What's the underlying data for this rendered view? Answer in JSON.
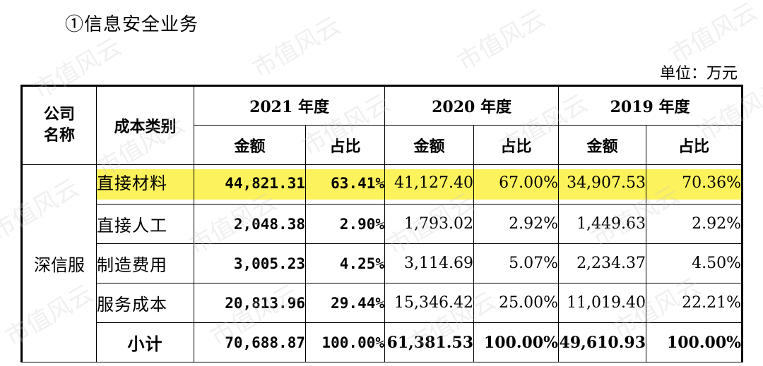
{
  "section_title": "①信息安全业务",
  "unit": "单位：万元",
  "watermark_text": "市值风云",
  "header": {
    "company_col": "公司\n名称",
    "company_col_lines": [
      "公司",
      "名称"
    ],
    "category_col": "成本类别",
    "years": [
      "2021 年度",
      "2020 年度",
      "2019 年度"
    ],
    "amount": "金额",
    "ratio": "占比"
  },
  "company": "深信服",
  "highlight_color": "#fcf25b",
  "rows": [
    {
      "category": "直接材料",
      "v2021": "44,821.31",
      "r2021": "63.41%",
      "v2020": "41,127.40",
      "r2020": "67.00%",
      "v2019": "34,907.53",
      "r2019": "70.36%"
    },
    {
      "category": "直接人工",
      "v2021": "2,048.38",
      "r2021": "2.90%",
      "v2020": "1,793.02",
      "r2020": "2.92%",
      "v2019": "1,449.63",
      "r2019": "2.92%"
    },
    {
      "category": "制造费用",
      "v2021": "3,005.23",
      "r2021": "4.25%",
      "v2020": "3,114.69",
      "r2020": "5.07%",
      "v2019": "2,234.37",
      "r2019": "4.50%"
    },
    {
      "category": "服务成本",
      "v2021": "20,813.96",
      "r2021": "29.44%",
      "v2020": "15,346.42",
      "r2020": "25.00%",
      "v2019": "11,019.40",
      "r2019": "22.21%"
    },
    {
      "category": "小计",
      "v2021": "70,688.87",
      "r2021": "100.00%",
      "v2020": "61,381.53",
      "r2020": "100.00%",
      "v2019": "49,610.93",
      "r2019": "100.00%"
    }
  ]
}
